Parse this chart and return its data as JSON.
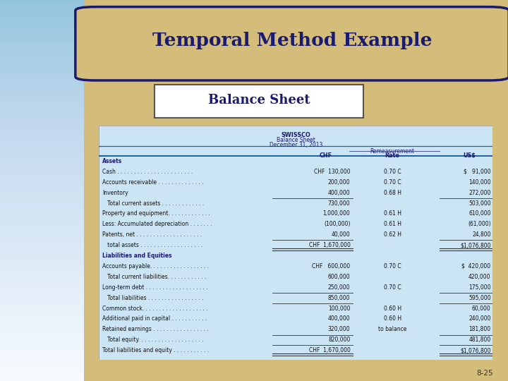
{
  "title": "Temporal Method Example",
  "subtitle": "Balance Sheet",
  "bg_color": "#d4bc7a",
  "title_box_facecolor": "#d4bc7a",
  "title_text_color": "#1a1a6e",
  "subtitle_box_facecolor": "#ffffff",
  "table_bg": "#cce5f5",
  "left_bar_color": "#0d2a5e",
  "slide_number": "8-25",
  "left_bar_width": 0.165,
  "table_header_lines": [
    "SWISSCO",
    "Balance Sheet",
    "December 31, 2013"
  ],
  "rows": [
    {
      "label": "Assets",
      "bold": true,
      "chf": "",
      "rate": "",
      "usd": "",
      "ul_chf": false,
      "ul_usd": false,
      "dbl": false
    },
    {
      "label": "Cash . . . . . . . . . . . . . . . . . . . . . . .",
      "bold": false,
      "chf": "CHF  130,000",
      "rate": "0.70 C",
      "usd": "$   91,000",
      "ul_chf": false,
      "ul_usd": false,
      "dbl": false
    },
    {
      "label": "Accounts receivable . . . . . . . . . . . . . .",
      "bold": false,
      "chf": "200,000",
      "rate": "0.70 C",
      "usd": "140,000",
      "ul_chf": false,
      "ul_usd": false,
      "dbl": false
    },
    {
      "label": "Inventory",
      "bold": false,
      "chf": "400,000",
      "rate": "0.68 H",
      "usd": "272,000",
      "ul_chf": true,
      "ul_usd": true,
      "dbl": false
    },
    {
      "label": "   Total current assets . . . . . . . . . . . . .",
      "bold": false,
      "chf": "730,000",
      "rate": "",
      "usd": "503,000",
      "ul_chf": false,
      "ul_usd": false,
      "dbl": false
    },
    {
      "label": "Property and equipment. . . . . . . . . . . . .",
      "bold": false,
      "chf": "1,000,000",
      "rate": "0.61 H",
      "usd": "610,000",
      "ul_chf": false,
      "ul_usd": false,
      "dbl": false
    },
    {
      "label": "Less: Accumulated depreciation . . . . . . .",
      "bold": false,
      "chf": "(100,000)",
      "rate": "0.61 H",
      "usd": "(61,000)",
      "ul_chf": false,
      "ul_usd": false,
      "dbl": false
    },
    {
      "label": "Patents, net . . . . . . . . . . . . . . . . . . . .",
      "bold": false,
      "chf": "40,000",
      "rate": "0.62 H",
      "usd": "24,800",
      "ul_chf": true,
      "ul_usd": true,
      "dbl": false
    },
    {
      "label": "   total assets . . . . . . . . . . . . . . . . . . .",
      "bold": false,
      "chf": "CHF  1,670,000",
      "rate": "",
      "usd": "$1,076,800",
      "ul_chf": false,
      "ul_usd": false,
      "dbl": true
    },
    {
      "label": "Liabilities and Equities",
      "bold": true,
      "chf": "",
      "rate": "",
      "usd": "",
      "ul_chf": false,
      "ul_usd": false,
      "dbl": false
    },
    {
      "label": "Accounts payable. . . . . . . . . . . . . . . . . .",
      "bold": false,
      "chf": "CHF   600,000",
      "rate": "0.70 C",
      "usd": "$  420,000",
      "ul_chf": false,
      "ul_usd": false,
      "dbl": false
    },
    {
      "label": "   Total current liabilities. . . . . . . . . . . .",
      "bold": false,
      "chf": "600,000",
      "rate": "",
      "usd": "420,000",
      "ul_chf": false,
      "ul_usd": false,
      "dbl": false
    },
    {
      "label": "Long-term debt . . . . . . . . . . . . . . . . . . .",
      "bold": false,
      "chf": "250,000",
      "rate": "0.70 C",
      "usd": "175,000",
      "ul_chf": true,
      "ul_usd": true,
      "dbl": false
    },
    {
      "label": "   Total liabilities . . . . . . . . . . . . . . . . .",
      "bold": false,
      "chf": "850,000",
      "rate": "",
      "usd": "595,000",
      "ul_chf": true,
      "ul_usd": true,
      "dbl": false
    },
    {
      "label": "Common stock. . . . . . . . . . . . . . . . . . . .",
      "bold": false,
      "chf": "100,000",
      "rate": "0.60 H",
      "usd": "60,000",
      "ul_chf": false,
      "ul_usd": false,
      "dbl": false
    },
    {
      "label": "Additional paid in capital . . . . . . . . . . .",
      "bold": false,
      "chf": "400,000",
      "rate": "0.60 H",
      "usd": "240,000",
      "ul_chf": false,
      "ul_usd": false,
      "dbl": false
    },
    {
      "label": "Retained earnings . . . . . . . . . . . . . . . . .",
      "bold": false,
      "chf": "320,000",
      "rate": "to balance",
      "usd": "181,800",
      "ul_chf": true,
      "ul_usd": true,
      "dbl": false
    },
    {
      "label": "   Total equity. . . . . . . . . . . . . . . . . . . .",
      "bold": false,
      "chf": "820,000",
      "rate": "",
      "usd": "481,800",
      "ul_chf": true,
      "ul_usd": true,
      "dbl": false
    },
    {
      "label": "Total liabilities and equity . . . . . . . . . . .",
      "bold": false,
      "chf": "CHF  1,670,000",
      "rate": "",
      "usd": "$1,076,800",
      "ul_chf": false,
      "ul_usd": false,
      "dbl": true
    }
  ]
}
